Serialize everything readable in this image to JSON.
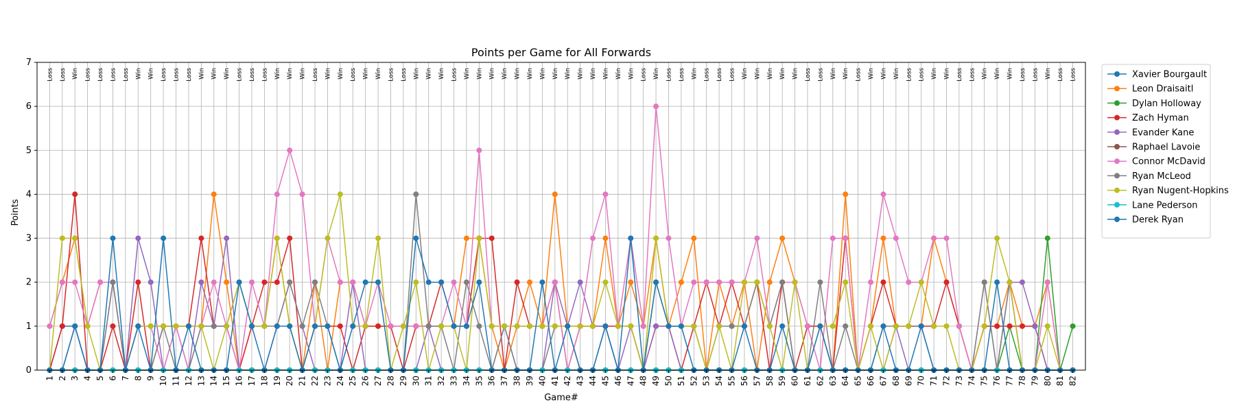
{
  "chart_data": {
    "type": "line",
    "title": "Points per Game for All Forwards",
    "xlabel": "Game#",
    "ylabel": "Points",
    "ylim": [
      0,
      7
    ],
    "yticks": [
      0,
      1,
      2,
      3,
      4,
      5,
      6,
      7
    ],
    "grid": true,
    "legend_position": "outside-right-top",
    "x": [
      1,
      2,
      3,
      4,
      5,
      6,
      7,
      8,
      9,
      10,
      11,
      12,
      13,
      14,
      15,
      16,
      17,
      18,
      19,
      20,
      21,
      22,
      23,
      24,
      25,
      26,
      27,
      28,
      29,
      30,
      31,
      32,
      33,
      34,
      35,
      36,
      37,
      38,
      39,
      40,
      41,
      42,
      43,
      44,
      45,
      46,
      47,
      48,
      49,
      50,
      51,
      52,
      53,
      54,
      55,
      56,
      57,
      58,
      59,
      60,
      61,
      62,
      63,
      64,
      65,
      66,
      67,
      68,
      69,
      70,
      71,
      72,
      73,
      74,
      75,
      76,
      77,
      78,
      79,
      80,
      81,
      82
    ],
    "results": [
      "Loss",
      "Loss",
      "Win",
      "Loss",
      "Loss",
      "Loss",
      "Loss",
      "Win",
      "Win",
      "Loss",
      "Loss",
      "Loss",
      "Win",
      "Win",
      "Win",
      "Loss",
      "Loss",
      "Loss",
      "Win",
      "Win",
      "Win",
      "Loss",
      "Win",
      "Win",
      "Loss",
      "Win",
      "Win",
      "Loss",
      "Loss",
      "Win",
      "Win",
      "Win",
      "Loss",
      "Win",
      "Win",
      "Win",
      "Win",
      "Win",
      "Win",
      "Win",
      "Win",
      "Win",
      "Win",
      "Win",
      "Win",
      "Win",
      "Win",
      "Loss",
      "Win",
      "Loss",
      "Loss",
      "Win",
      "Loss",
      "Loss",
      "Loss",
      "Win",
      "Win",
      "Win",
      "Win",
      "Win",
      "Loss",
      "Loss",
      "Win",
      "Win",
      "Loss",
      "Win",
      "Win",
      "Win",
      "Loss",
      "Loss",
      "Win",
      "Win",
      "Loss",
      "Loss",
      "Win",
      "Win",
      "Win",
      "Loss",
      "Loss",
      "Win",
      "Loss",
      "Loss"
    ],
    "series": [
      {
        "name": "Xavier Bourgault",
        "color": "#1f77b4",
        "values": [
          0,
          1,
          1,
          0,
          0,
          0,
          0,
          0,
          0,
          0,
          0,
          0,
          0,
          0,
          0,
          0,
          0,
          0,
          0,
          0,
          0,
          0,
          0,
          0,
          0,
          0,
          0,
          0,
          0,
          0,
          0,
          0,
          0,
          0,
          0,
          0,
          0,
          0,
          0,
          0,
          0,
          0,
          0,
          0,
          0,
          0,
          0,
          0,
          0,
          0,
          0,
          0,
          0,
          0,
          0,
          0,
          0,
          0,
          0,
          0,
          0,
          0,
          0,
          0,
          0,
          0,
          0,
          0,
          0,
          0,
          0,
          0,
          0,
          0,
          0,
          0,
          0,
          0,
          0,
          0,
          0,
          0
        ]
      },
      {
        "name": "Leon Draisaitl",
        "color": "#ff7f0e",
        "values": [
          1,
          2,
          3,
          1,
          2,
          2,
          0,
          1,
          1,
          1,
          1,
          1,
          1,
          4,
          2,
          0,
          1,
          1,
          3,
          1,
          0,
          2,
          0,
          2,
          2,
          1,
          1,
          1,
          1,
          1,
          1,
          1,
          1,
          3,
          3,
          1,
          0,
          1,
          2,
          1,
          4,
          1,
          1,
          1,
          3,
          1,
          2,
          1,
          3,
          1,
          2,
          3,
          0,
          2,
          1,
          2,
          0,
          2,
          3,
          2,
          1,
          1,
          0,
          4,
          0,
          1,
          3,
          1,
          1,
          1,
          3,
          2,
          1,
          0,
          1,
          1,
          2,
          1,
          1,
          2,
          0,
          0
        ]
      },
      {
        "name": "Dylan Holloway",
        "color": "#2ca02c",
        "values": [
          0,
          0,
          0,
          0,
          0,
          0,
          0,
          0,
          0,
          0,
          0,
          0,
          0,
          0,
          0,
          0,
          0,
          0,
          0,
          0,
          0,
          0,
          0,
          0,
          0,
          0,
          0,
          0,
          0,
          0,
          0,
          0,
          0,
          0,
          0,
          0,
          0,
          0,
          0,
          0,
          0,
          0,
          0,
          0,
          0,
          0,
          0,
          0,
          0,
          0,
          0,
          0,
          0,
          0,
          0,
          0,
          0,
          0,
          0,
          0,
          0,
          0,
          0,
          0,
          0,
          0,
          0,
          0,
          0,
          0,
          0,
          0,
          0,
          0,
          0,
          0,
          1,
          0,
          0,
          3,
          0,
          1
        ]
      },
      {
        "name": "Zach Hyman",
        "color": "#d62728",
        "values": [
          0,
          1,
          4,
          0,
          0,
          1,
          0,
          2,
          0,
          1,
          1,
          1,
          3,
          1,
          1,
          0,
          1,
          2,
          2,
          3,
          0,
          1,
          1,
          1,
          0,
          1,
          1,
          1,
          0,
          1,
          1,
          2,
          1,
          1,
          3,
          3,
          0,
          2,
          1,
          1,
          2,
          0,
          1,
          1,
          1,
          1,
          1,
          0,
          1,
          1,
          0,
          1,
          2,
          1,
          2,
          1,
          2,
          0,
          2,
          0,
          1,
          1,
          0,
          3,
          0,
          1,
          2,
          1,
          1,
          1,
          1,
          2,
          1,
          0,
          1,
          1,
          1,
          1,
          1,
          0,
          0,
          0
        ]
      },
      {
        "name": "Evander Kane",
        "color": "#9467bd",
        "values": [
          0,
          0,
          1,
          0,
          0,
          2,
          0,
          3,
          2,
          0,
          1,
          0,
          2,
          1,
          3,
          0,
          0,
          0,
          1,
          2,
          1,
          0,
          0,
          0,
          2,
          0,
          0,
          0,
          0,
          0,
          1,
          0,
          0,
          0,
          0,
          0,
          1,
          0,
          0,
          0,
          2,
          1,
          2,
          1,
          1,
          0,
          1,
          0,
          1,
          1,
          0,
          0,
          0,
          0,
          0,
          0,
          0,
          0,
          0,
          0,
          0,
          0,
          0,
          0,
          0,
          0,
          0,
          1,
          0,
          0,
          0,
          0,
          0,
          0,
          0,
          0,
          2,
          2,
          1,
          0,
          0,
          0
        ]
      },
      {
        "name": "Raphael Lavoie",
        "color": "#8c564b",
        "values": [
          0,
          0,
          0,
          0,
          0,
          0,
          0,
          0,
          0,
          0,
          0,
          0,
          0,
          0,
          0,
          0,
          0,
          0,
          0,
          0,
          0,
          0,
          0,
          0,
          0,
          0,
          0,
          0,
          0,
          0,
          0,
          0,
          0,
          0,
          0,
          0,
          0,
          0,
          0,
          0,
          0,
          0,
          0,
          0,
          0,
          0,
          0,
          0,
          0,
          0,
          0,
          0,
          0,
          0,
          0,
          0,
          0,
          0,
          0,
          0,
          0,
          0,
          0,
          0,
          0,
          0,
          0,
          0,
          0,
          0,
          0,
          0,
          0,
          0,
          0,
          0,
          0,
          0,
          0,
          0,
          0,
          0
        ]
      },
      {
        "name": "Connor McDavid",
        "color": "#e377c2",
        "values": [
          1,
          2,
          2,
          1,
          2,
          2,
          0,
          1,
          1,
          0,
          1,
          0,
          1,
          2,
          1,
          0,
          2,
          1,
          4,
          5,
          4,
          1,
          3,
          2,
          2,
          1,
          2,
          1,
          1,
          1,
          1,
          1,
          2,
          1,
          5,
          1,
          1,
          1,
          1,
          1,
          2,
          0,
          1,
          3,
          4,
          1,
          3,
          1,
          6,
          3,
          1,
          2,
          2,
          2,
          2,
          2,
          3,
          1,
          2,
          2,
          1,
          0,
          3,
          3,
          0,
          2,
          4,
          3,
          2,
          2,
          3,
          3,
          1,
          0,
          2,
          0,
          2,
          0,
          0,
          2,
          0,
          0
        ]
      },
      {
        "name": "Ryan McLeod",
        "color": "#7f7f7f",
        "values": [
          0,
          0,
          0,
          0,
          0,
          2,
          0,
          0,
          0,
          1,
          0,
          0,
          1,
          1,
          1,
          2,
          1,
          1,
          1,
          2,
          1,
          2,
          1,
          0,
          0,
          0,
          0,
          0,
          0,
          4,
          1,
          1,
          0,
          2,
          1,
          0,
          1,
          0,
          0,
          0,
          1,
          1,
          0,
          0,
          1,
          0,
          0,
          0,
          2,
          1,
          1,
          1,
          0,
          1,
          1,
          1,
          2,
          1,
          2,
          0,
          0,
          2,
          0,
          1,
          0,
          0,
          1,
          1,
          1,
          1,
          0,
          0,
          0,
          0,
          2,
          0,
          2,
          0,
          0,
          0,
          0,
          0
        ]
      },
      {
        "name": "Ryan Nugent-Hopkins",
        "color": "#bcbd22",
        "values": [
          0,
          3,
          3,
          1,
          0,
          0,
          0,
          1,
          1,
          1,
          1,
          1,
          1,
          0,
          1,
          2,
          1,
          1,
          3,
          1,
          0,
          1,
          3,
          4,
          1,
          1,
          3,
          0,
          1,
          2,
          0,
          1,
          1,
          0,
          3,
          1,
          1,
          1,
          1,
          1,
          1,
          1,
          1,
          1,
          2,
          1,
          1,
          0,
          3,
          1,
          1,
          1,
          0,
          1,
          0,
          2,
          2,
          1,
          0,
          2,
          0,
          1,
          1,
          2,
          0,
          1,
          0,
          1,
          1,
          2,
          1,
          1,
          0,
          0,
          1,
          3,
          2,
          0,
          0,
          1,
          0,
          0
        ]
      },
      {
        "name": "Lane Pederson",
        "color": "#17becf",
        "values": [
          0,
          0,
          0,
          0,
          0,
          0,
          0,
          0,
          0,
          0,
          0,
          0,
          0,
          0,
          0,
          0,
          0,
          0,
          0,
          0,
          0,
          0,
          0,
          0,
          0,
          0,
          0,
          0,
          0,
          0,
          0,
          0,
          0,
          0,
          0,
          0,
          0,
          0,
          0,
          0,
          0,
          0,
          0,
          0,
          0,
          0,
          0,
          0,
          0,
          0,
          0,
          0,
          0,
          0,
          0,
          0,
          0,
          0,
          0,
          0,
          0,
          0,
          0,
          0,
          0,
          0,
          0,
          0,
          0,
          0,
          0,
          0,
          0,
          0,
          0,
          0,
          0,
          0,
          0,
          0,
          0,
          0
        ]
      },
      {
        "name": "Derek Ryan",
        "color": "#1f77b4",
        "values": [
          0,
          0,
          1,
          0,
          0,
          3,
          0,
          1,
          0,
          3,
          0,
          1,
          0,
          0,
          0,
          2,
          1,
          0,
          1,
          1,
          0,
          1,
          1,
          0,
          1,
          2,
          2,
          0,
          0,
          3,
          2,
          2,
          1,
          1,
          2,
          0,
          0,
          0,
          0,
          2,
          0,
          1,
          0,
          0,
          1,
          0,
          3,
          0,
          2,
          1,
          1,
          0,
          0,
          0,
          0,
          1,
          0,
          0,
          1,
          0,
          0,
          1,
          0,
          0,
          0,
          0,
          1,
          0,
          0,
          1,
          0,
          0,
          0,
          0,
          0,
          2,
          0,
          0,
          0,
          0,
          0,
          0
        ]
      }
    ]
  }
}
